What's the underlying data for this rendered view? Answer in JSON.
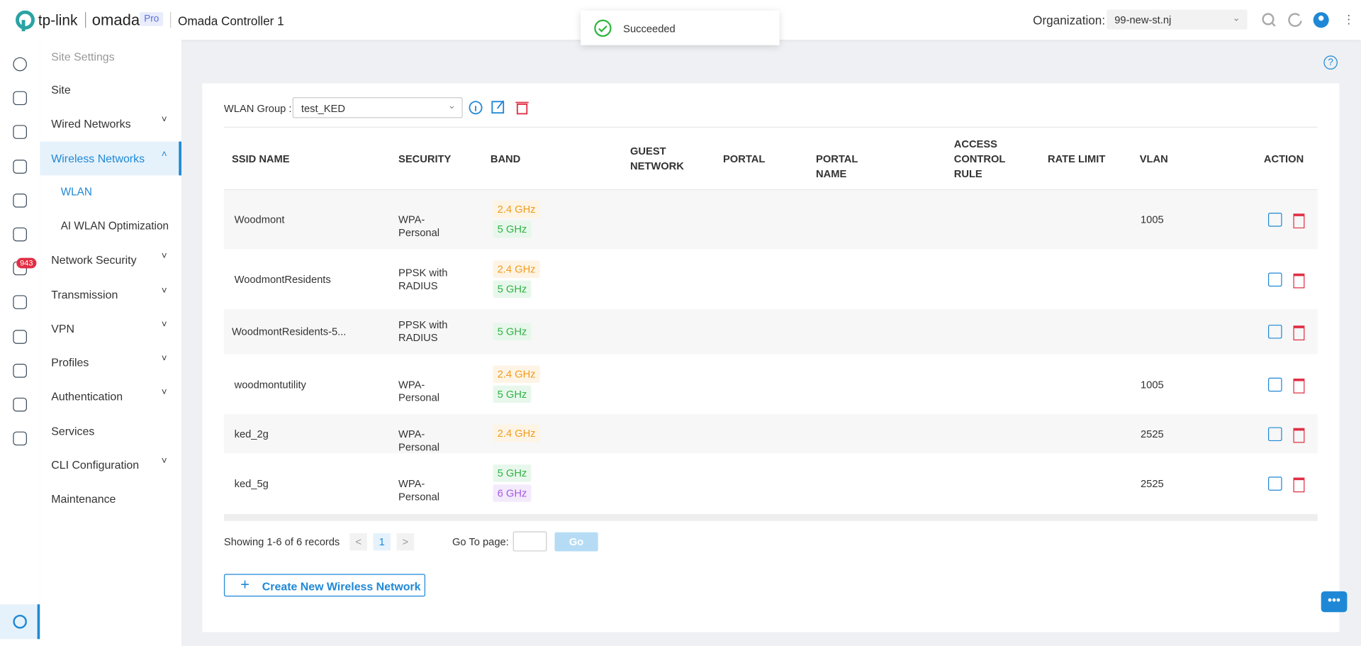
{
  "header": {
    "brand": "tp-link",
    "product": "omada",
    "badge": "Pro",
    "controller": "Omada Controller 1",
    "org_label": "Organization:",
    "org_value": "99-new-st.nj"
  },
  "toast": "Succeeded",
  "rail_badge": "943",
  "sidebar": {
    "title": "Site Settings",
    "items": [
      {
        "label": "Site"
      },
      {
        "label": "Wired Networks",
        "expandable": true
      },
      {
        "label": "Wireless Networks",
        "expandable": true,
        "active": true
      },
      {
        "label": "WLAN",
        "sub": true,
        "active": true
      },
      {
        "label": "AI WLAN Optimization",
        "sub": true
      },
      {
        "label": "Network Security",
        "expandable": true
      },
      {
        "label": "Transmission",
        "expandable": true
      },
      {
        "label": "VPN",
        "expandable": true
      },
      {
        "label": "Profiles",
        "expandable": true
      },
      {
        "label": "Authentication",
        "expandable": true
      },
      {
        "label": "Services"
      },
      {
        "label": "CLI Configuration",
        "expandable": true
      },
      {
        "label": "Maintenance"
      }
    ]
  },
  "wlan_group": {
    "label": "WLAN Group :",
    "value": "test_KED"
  },
  "table": {
    "columns": [
      "SSID NAME",
      "SECURITY",
      "BAND",
      "GUEST NETWORK",
      "PORTAL",
      "PORTAL NAME",
      "ACCESS CONTROL RULE",
      "RATE LIMIT",
      "VLAN",
      "ACTION"
    ],
    "rows": [
      {
        "ssid": "Woodmont",
        "security": "WPA-Personal",
        "bands": [
          "2.4 GHz",
          "5 GHz"
        ],
        "vlan": "1005"
      },
      {
        "ssid": "WoodmontResidents",
        "security": "PPSK with RADIUS",
        "bands": [
          "2.4 GHz",
          "5 GHz"
        ]
      },
      {
        "ssid": "WoodmontResidents-5...",
        "security": "PPSK with RADIUS",
        "bands": [
          "5 GHz"
        ]
      },
      {
        "ssid": "woodmontutility",
        "security": "WPA-Personal",
        "bands": [
          "2.4 GHz",
          "5 GHz"
        ],
        "vlan": "1005"
      },
      {
        "ssid": "ked_2g",
        "security": "WPA-Personal",
        "bands": [
          "2.4 GHz"
        ],
        "vlan": "2525"
      },
      {
        "ssid": "ked_5g",
        "security": "WPA-Personal",
        "bands": [
          "5 GHz",
          "6 GHz"
        ],
        "vlan": "2525"
      }
    ]
  },
  "pagination": {
    "summary": "Showing 1-6 of 6 records",
    "page": "1",
    "goto_label": "Go To page:",
    "go": "Go"
  },
  "create_button": "Create New Wireless Network"
}
